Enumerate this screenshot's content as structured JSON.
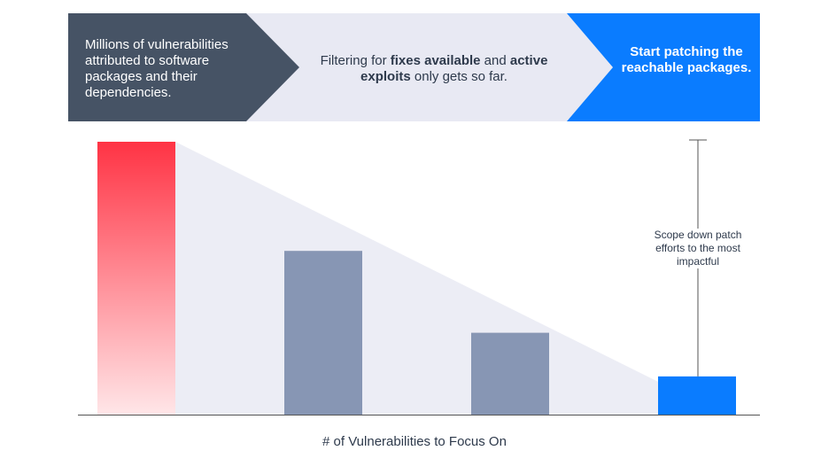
{
  "steps": [
    {
      "text": "Millions of vulnerabilities attributed to software packages and their dependencies.",
      "color": "#465365",
      "text_color": "#ffffff"
    },
    {
      "text_before": "Filtering for ",
      "bold_1": "fixes available",
      "text_middle": " and ",
      "bold_2": "active exploits",
      "text_after": " only gets so far.",
      "color": "#e8e9f3",
      "text_color": "#2e3a4c"
    },
    {
      "text": "Start patching the reachable packages.",
      "color": "#0a7cff",
      "text_color": "#ffffff"
    }
  ],
  "annotation": "Scope down patch efforts to the most impactful",
  "colors": {
    "bar_red_top": "#ff3344",
    "bar_red_bottom": "#ffe6e8",
    "bar_gray": "#8796b4",
    "bar_blue": "#0a7cff",
    "funnel": "#ecedf5",
    "axis": "#555555"
  },
  "chart_data": {
    "type": "bar",
    "categories": [
      "",
      "",
      "",
      ""
    ],
    "values": [
      100,
      60,
      30,
      14
    ],
    "ylim": [
      0,
      100
    ],
    "xlabel": "# of Vulnerabilities to Focus On",
    "ylabel": "",
    "grid": false
  }
}
